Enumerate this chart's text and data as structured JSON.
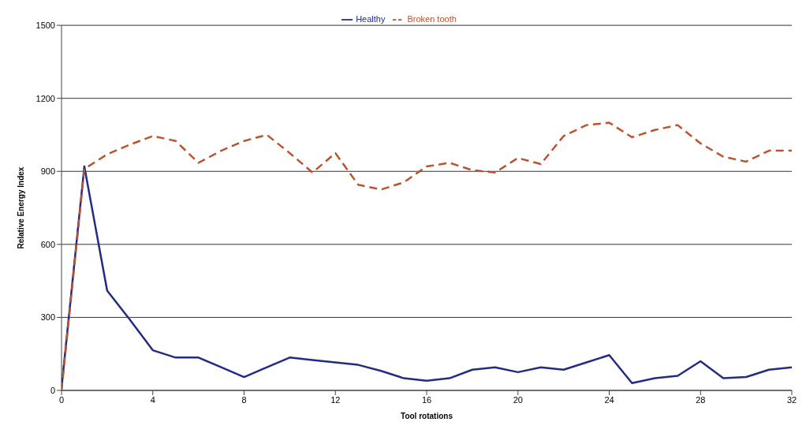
{
  "chart_data": {
    "type": "line",
    "xlabel": "Tool rotations",
    "ylabel": "Relative Energy Index",
    "x": [
      0,
      1,
      2,
      3,
      4,
      5,
      6,
      7,
      8,
      9,
      10,
      11,
      12,
      13,
      14,
      15,
      16,
      17,
      18,
      19,
      20,
      21,
      22,
      23,
      24,
      25,
      26,
      27,
      28,
      29,
      30,
      31,
      32
    ],
    "series": [
      {
        "name": "Healthy",
        "color": "#232c80",
        "line_style": "solid",
        "values": [
          10,
          920,
          410,
          290,
          165,
          135,
          135,
          95,
          55,
          95,
          135,
          125,
          115,
          105,
          80,
          50,
          40,
          50,
          85,
          95,
          75,
          95,
          85,
          115,
          145,
          30,
          50,
          60,
          120,
          50,
          55,
          85,
          95
        ]
      },
      {
        "name": "Broken tooth",
        "color": "#b8542e",
        "line_style": "dashed",
        "values": [
          0,
          910,
          970,
          1010,
          1045,
          1025,
          935,
          985,
          1025,
          1050,
          975,
          895,
          975,
          845,
          825,
          855,
          920,
          935,
          905,
          895,
          955,
          930,
          1045,
          1090,
          1100,
          1040,
          1070,
          1090,
          1015,
          960,
          940,
          985,
          985
        ]
      }
    ],
    "xlim": [
      0,
      32
    ],
    "xticks": [
      0,
      4,
      8,
      12,
      16,
      20,
      24,
      28,
      32
    ],
    "ylim": [
      0,
      1500
    ],
    "yticks": [
      0,
      300,
      600,
      900,
      1200,
      1500
    ],
    "grid": "y",
    "legend": "top",
    "marker": "none"
  }
}
